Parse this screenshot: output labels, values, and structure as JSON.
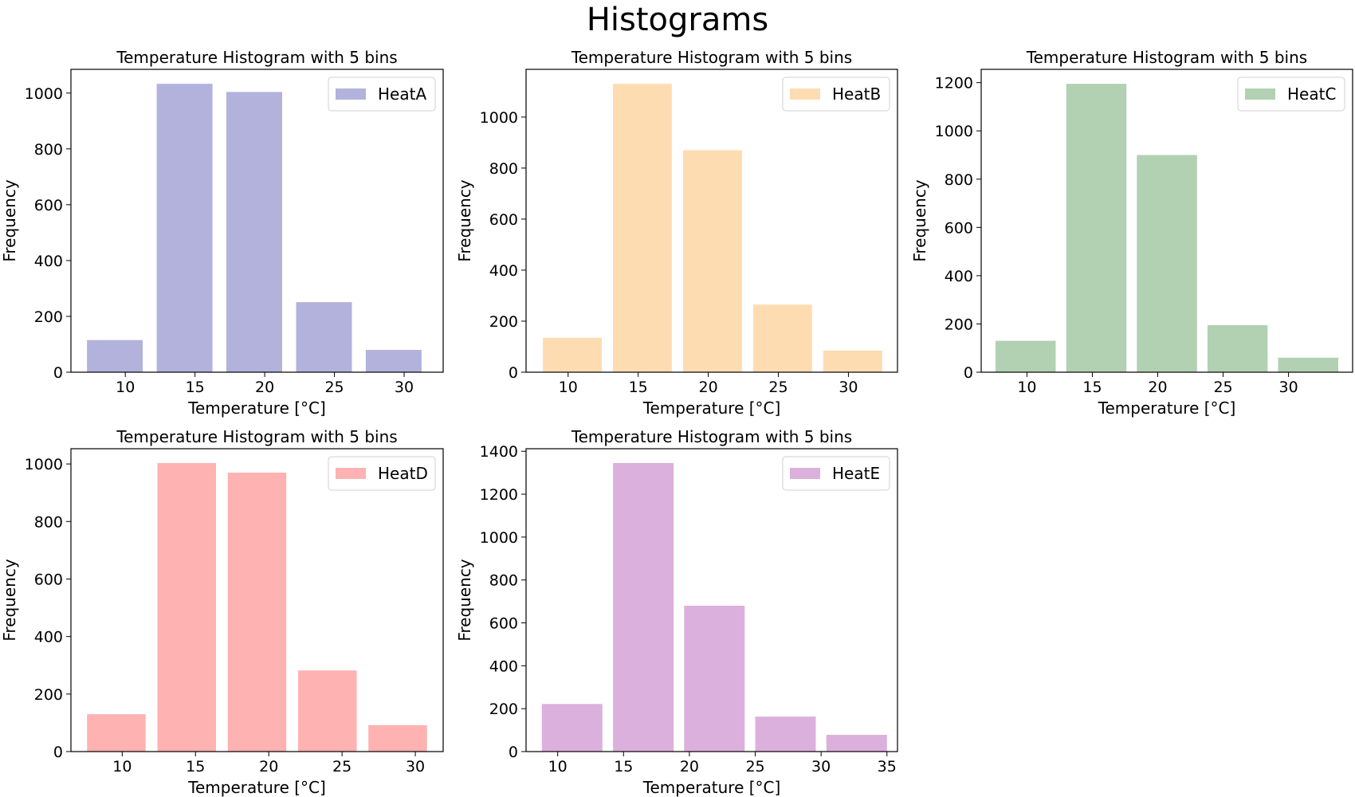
{
  "figure": {
    "title": "Histograms"
  },
  "chart_data": [
    {
      "type": "bar",
      "title": "Temperature Histogram with 5 bins",
      "xlabel": "Temperature [°C]",
      "ylabel": "Frequency",
      "series": [
        {
          "name": "HeatA",
          "color": "#b2b2dd"
        }
      ],
      "bins": [
        {
          "left": 7.25,
          "right": 11.25,
          "count": 115
        },
        {
          "left": 12.25,
          "right": 16.25,
          "count": 1033
        },
        {
          "left": 17.25,
          "right": 21.25,
          "count": 1004
        },
        {
          "left": 22.25,
          "right": 26.25,
          "count": 251
        },
        {
          "left": 27.25,
          "right": 31.25,
          "count": 80
        }
      ],
      "xlim": [
        6.1,
        32.8
      ],
      "ylim": [
        0,
        1085
      ],
      "xticks": [
        10,
        15,
        20,
        25,
        30
      ],
      "yticks": [
        0,
        200,
        400,
        600,
        800,
        1000
      ],
      "legend": "top-right",
      "grid": false
    },
    {
      "type": "bar",
      "title": "Temperature Histogram with 5 bins",
      "xlabel": "Temperature [°C]",
      "ylabel": "Frequency",
      "series": [
        {
          "name": "HeatB",
          "color": "#fedcb2"
        }
      ],
      "bins": [
        {
          "left": 8.2,
          "right": 12.4,
          "count": 135
        },
        {
          "left": 13.2,
          "right": 17.4,
          "count": 1130
        },
        {
          "left": 18.2,
          "right": 22.4,
          "count": 870
        },
        {
          "left": 23.2,
          "right": 27.4,
          "count": 265
        },
        {
          "left": 28.2,
          "right": 32.4,
          "count": 85
        }
      ],
      "xlim": [
        7.0,
        33.5
      ],
      "ylim": [
        0,
        1187
      ],
      "xticks": [
        10,
        15,
        20,
        25,
        30
      ],
      "yticks": [
        0,
        200,
        400,
        600,
        800,
        1000
      ],
      "legend": "top-right",
      "grid": false
    },
    {
      "type": "bar",
      "title": "Temperature Histogram with 5 bins",
      "xlabel": "Temperature [°C]",
      "ylabel": "Frequency",
      "series": [
        {
          "name": "HeatC",
          "color": "#b2d0b2"
        }
      ],
      "bins": [
        {
          "left": 7.6,
          "right": 12.2,
          "count": 130
        },
        {
          "left": 13.0,
          "right": 17.6,
          "count": 1195
        },
        {
          "left": 18.4,
          "right": 23.0,
          "count": 900
        },
        {
          "left": 23.8,
          "right": 28.4,
          "count": 195
        },
        {
          "left": 29.2,
          "right": 33.8,
          "count": 60
        }
      ],
      "xlim": [
        6.5,
        34.9
      ],
      "ylim": [
        0,
        1255
      ],
      "xticks": [
        10,
        15,
        20,
        25,
        30
      ],
      "yticks": [
        0,
        200,
        400,
        600,
        800,
        1000,
        1200
      ],
      "legend": "top-right",
      "grid": false
    },
    {
      "type": "bar",
      "title": "Temperature Histogram with 5 bins",
      "xlabel": "Temperature [°C]",
      "ylabel": "Frequency",
      "series": [
        {
          "name": "HeatD",
          "color": "#feb2b2"
        }
      ],
      "bins": [
        {
          "left": 7.6,
          "right": 11.6,
          "count": 130
        },
        {
          "left": 12.4,
          "right": 16.4,
          "count": 1003
        },
        {
          "left": 17.2,
          "right": 21.2,
          "count": 970
        },
        {
          "left": 22.0,
          "right": 26.0,
          "count": 282
        },
        {
          "left": 26.8,
          "right": 30.8,
          "count": 92
        }
      ],
      "xlim": [
        6.5,
        31.9
      ],
      "ylim": [
        0,
        1053
      ],
      "xticks": [
        10,
        15,
        20,
        25,
        30
      ],
      "yticks": [
        0,
        200,
        400,
        600,
        800,
        1000
      ],
      "legend": "top-right",
      "grid": false
    },
    {
      "type": "bar",
      "title": "Temperature Histogram with 5 bins",
      "xlabel": "Temperature [°C]",
      "ylabel": "Frequency",
      "series": [
        {
          "name": "HeatE",
          "color": "#dcb0dc"
        }
      ],
      "bins": [
        {
          "left": 8.8,
          "right": 13.4,
          "count": 222
        },
        {
          "left": 14.2,
          "right": 18.8,
          "count": 1345
        },
        {
          "left": 19.6,
          "right": 24.2,
          "count": 680
        },
        {
          "left": 25.0,
          "right": 29.6,
          "count": 163
        },
        {
          "left": 30.4,
          "right": 35.0,
          "count": 78
        }
      ],
      "xlim": [
        7.6,
        35.8
      ],
      "ylim": [
        0,
        1412
      ],
      "xticks": [
        10,
        15,
        20,
        25,
        30,
        35
      ],
      "yticks": [
        0,
        200,
        400,
        600,
        800,
        1000,
        1200,
        1400
      ],
      "legend": "top-right",
      "grid": false
    }
  ]
}
